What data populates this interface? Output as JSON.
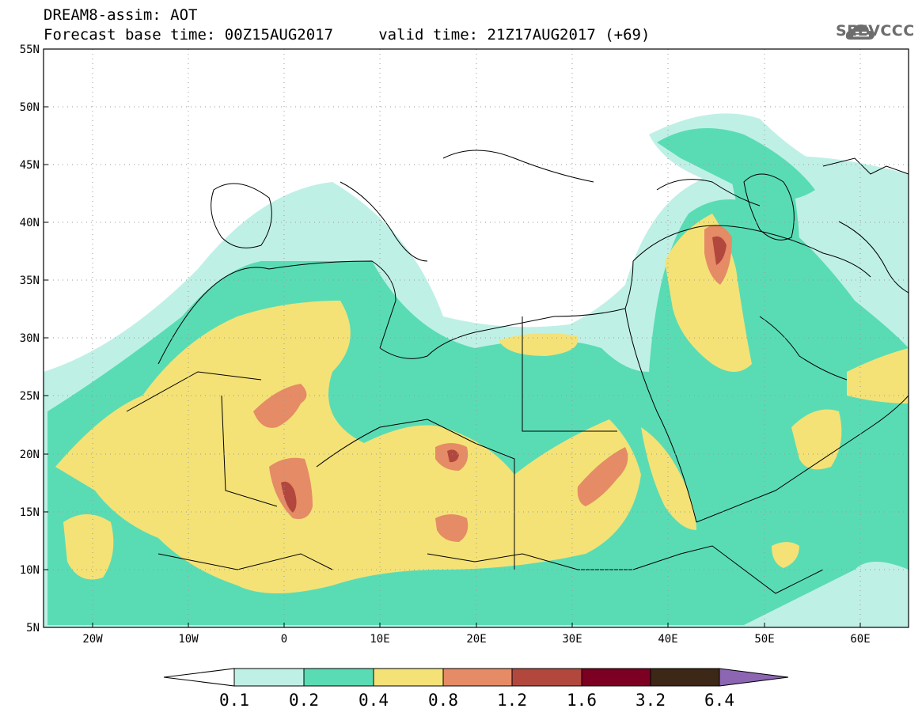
{
  "header": {
    "line1": "DREAM8-assim: AOT",
    "line2": "Forecast base time: 00Z15AUG2017     valid time: 21Z17AUG2017 (+69)"
  },
  "logo": {
    "text": "SEEVCCC",
    "icon": "cloud-icon"
  },
  "map": {
    "lat_ticks": [
      "55N",
      "50N",
      "45N",
      "40N",
      "35N",
      "30N",
      "25N",
      "20N",
      "15N",
      "10N",
      "5N"
    ],
    "lon_ticks": [
      "20W",
      "10W",
      "0",
      "10E",
      "20E",
      "30E",
      "40E",
      "50E",
      "60E"
    ],
    "lon_range": [
      -25,
      65
    ],
    "lat_range": [
      5,
      55
    ]
  },
  "colorbar": {
    "labels": [
      "0.1",
      "0.2",
      "0.4",
      "0.8",
      "1.2",
      "1.6",
      "3.2",
      "6.4"
    ],
    "colors": [
      "#ffffff",
      "#bff0e6",
      "#59dcb4",
      "#f4e277",
      "#e58b66",
      "#b2473e",
      "#7c0022",
      "#3d2716",
      "#8c66b3"
    ]
  },
  "colors": {
    "c1": "#bff0e6",
    "c2": "#59dcb4",
    "c3": "#f4e277",
    "c4": "#e58b66",
    "c5": "#b2473e",
    "c6": "#7c0022"
  }
}
